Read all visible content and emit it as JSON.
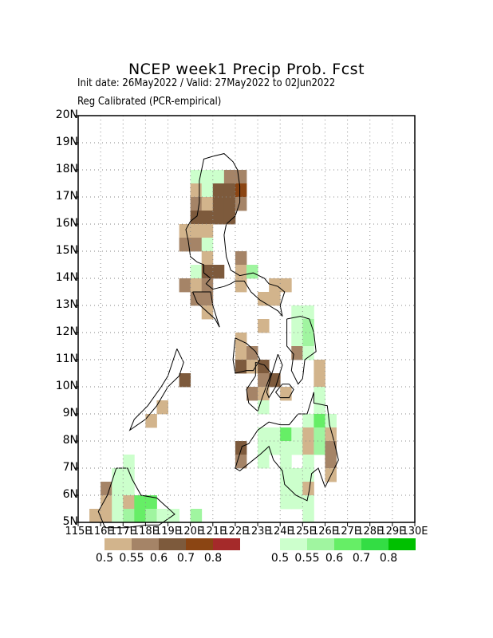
{
  "title": "NCEP week1 Precip Prob. Fcst",
  "subtitle1": "Init date: 26May2022 / Valid: 27May2022 to 02Jun2022",
  "subtitle2": "Reg Calibrated (PCR-empirical)",
  "lat_labels": [
    "5N",
    "6N",
    "7N",
    "8N",
    "9N",
    "10N",
    "11N",
    "12N",
    "13N",
    "14N",
    "15N",
    "16N",
    "17N",
    "18N",
    "19N",
    "20N"
  ],
  "lon_labels": [
    "115E",
    "116E",
    "117E",
    "118E",
    "119E",
    "120E",
    "121E",
    "122E",
    "123E",
    "124E",
    "125E",
    "126E",
    "127E",
    "128E",
    "129E",
    "130E"
  ],
  "dry_colors": [
    "#d2b48c",
    "#a58467",
    "#7d5a3c",
    "#8b4513",
    "#a52a2a"
  ],
  "wet_colors": [
    "#ccffcc",
    "#a0f5a0",
    "#66ee66",
    "#33dd44",
    "#00c000"
  ],
  "dry_labels": [
    "0.5",
    "0.55",
    "0.6",
    "0.7",
    "0.8"
  ],
  "wet_labels": [
    "0.5",
    "0.55",
    "0.6",
    "0.7",
    "0.8"
  ],
  "cells": [
    {
      "lon": 120.25,
      "lat": 17.75,
      "c": "w1"
    },
    {
      "lon": 120.75,
      "lat": 17.75,
      "c": "w1"
    },
    {
      "lon": 121.25,
      "lat": 17.75,
      "c": "w1"
    },
    {
      "lon": 121.75,
      "lat": 17.75,
      "c": "d2"
    },
    {
      "lon": 122.25,
      "lat": 17.75,
      "c": "d2"
    },
    {
      "lon": 120.25,
      "lat": 17.25,
      "c": "d1"
    },
    {
      "lon": 120.75,
      "lat": 17.25,
      "c": "w1"
    },
    {
      "lon": 121.25,
      "lat": 17.25,
      "c": "d3"
    },
    {
      "lon": 121.75,
      "lat": 17.25,
      "c": "d3"
    },
    {
      "lon": 122.25,
      "lat": 17.25,
      "c": "d4"
    },
    {
      "lon": 120.25,
      "lat": 16.75,
      "c": "d2"
    },
    {
      "lon": 120.75,
      "lat": 16.75,
      "c": "d1"
    },
    {
      "lon": 121.25,
      "lat": 16.75,
      "c": "d3"
    },
    {
      "lon": 121.75,
      "lat": 16.75,
      "c": "d3"
    },
    {
      "lon": 122.25,
      "lat": 16.75,
      "c": "d2"
    },
    {
      "lon": 120.25,
      "lat": 16.25,
      "c": "d3"
    },
    {
      "lon": 120.75,
      "lat": 16.25,
      "c": "d3"
    },
    {
      "lon": 121.25,
      "lat": 16.25,
      "c": "d3"
    },
    {
      "lon": 121.75,
      "lat": 16.25,
      "c": "d3"
    },
    {
      "lon": 119.75,
      "lat": 15.75,
      "c": "d1"
    },
    {
      "lon": 120.25,
      "lat": 15.75,
      "c": "d1"
    },
    {
      "lon": 120.75,
      "lat": 15.75,
      "c": "d1"
    },
    {
      "lon": 119.75,
      "lat": 15.25,
      "c": "d2"
    },
    {
      "lon": 120.25,
      "lat": 15.25,
      "c": "d2"
    },
    {
      "lon": 120.75,
      "lat": 15.25,
      "c": "w1"
    },
    {
      "lon": 120.75,
      "lat": 14.75,
      "c": "d1"
    },
    {
      "lon": 122.25,
      "lat": 14.75,
      "c": "d2"
    },
    {
      "lon": 120.25,
      "lat": 14.25,
      "c": "w1"
    },
    {
      "lon": 120.75,
      "lat": 14.25,
      "c": "d3"
    },
    {
      "lon": 121.25,
      "lat": 14.25,
      "c": "d3"
    },
    {
      "lon": 122.25,
      "lat": 14.25,
      "c": "d1"
    },
    {
      "lon": 122.75,
      "lat": 14.25,
      "c": "w2"
    },
    {
      "lon": 119.75,
      "lat": 13.75,
      "c": "d2"
    },
    {
      "lon": 120.25,
      "lat": 13.75,
      "c": "d1"
    },
    {
      "lon": 120.75,
      "lat": 13.75,
      "c": "d2"
    },
    {
      "lon": 122.25,
      "lat": 13.75,
      "c": "d1"
    },
    {
      "lon": 123.75,
      "lat": 13.75,
      "c": "d1"
    },
    {
      "lon": 124.25,
      "lat": 13.75,
      "c": "d1"
    },
    {
      "lon": 120.25,
      "lat": 13.25,
      "c": "d2"
    },
    {
      "lon": 120.75,
      "lat": 13.25,
      "c": "d2"
    },
    {
      "lon": 123.25,
      "lat": 13.25,
      "c": "d1"
    },
    {
      "lon": 123.75,
      "lat": 13.25,
      "c": "d1"
    },
    {
      "lon": 120.75,
      "lat": 12.75,
      "c": "d1"
    },
    {
      "lon": 124.75,
      "lat": 12.75,
      "c": "w1"
    },
    {
      "lon": 125.25,
      "lat": 12.75,
      "c": "w1"
    },
    {
      "lon": 123.25,
      "lat": 12.25,
      "c": "d1"
    },
    {
      "lon": 124.75,
      "lat": 12.25,
      "c": "w1"
    },
    {
      "lon": 125.25,
      "lat": 12.25,
      "c": "w2"
    },
    {
      "lon": 122.25,
      "lat": 11.75,
      "c": "d1"
    },
    {
      "lon": 124.75,
      "lat": 11.75,
      "c": "w1"
    },
    {
      "lon": 125.25,
      "lat": 11.75,
      "c": "w2"
    },
    {
      "lon": 122.25,
      "lat": 11.25,
      "c": "d1"
    },
    {
      "lon": 122.75,
      "lat": 11.25,
      "c": "d2"
    },
    {
      "lon": 124.75,
      "lat": 11.25,
      "c": "d2"
    },
    {
      "lon": 125.25,
      "lat": 11.25,
      "c": "w1"
    },
    {
      "lon": 122.25,
      "lat": 10.75,
      "c": "d3"
    },
    {
      "lon": 122.75,
      "lat": 10.75,
      "c": "d1"
    },
    {
      "lon": 123.25,
      "lat": 10.75,
      "c": "d3"
    },
    {
      "lon": 125.75,
      "lat": 10.75,
      "c": "d1"
    },
    {
      "lon": 119.75,
      "lat": 10.25,
      "c": "d3"
    },
    {
      "lon": 123.25,
      "lat": 10.25,
      "c": "d2"
    },
    {
      "lon": 123.75,
      "lat": 10.25,
      "c": "d3"
    },
    {
      "lon": 125.75,
      "lat": 10.25,
      "c": "d1"
    },
    {
      "lon": 122.75,
      "lat": 9.75,
      "c": "d2"
    },
    {
      "lon": 123.25,
      "lat": 9.75,
      "c": "d1"
    },
    {
      "lon": 124.25,
      "lat": 9.75,
      "c": "d1"
    },
    {
      "lon": 125.75,
      "lat": 9.75,
      "c": "w1"
    },
    {
      "lon": 118.75,
      "lat": 9.25,
      "c": "d1"
    },
    {
      "lon": 123.25,
      "lat": 9.25,
      "c": "w1"
    },
    {
      "lon": 125.75,
      "lat": 9.25,
      "c": "w1"
    },
    {
      "lon": 118.25,
      "lat": 8.75,
      "c": "d1"
    },
    {
      "lon": 125.25,
      "lat": 8.75,
      "c": "w1"
    },
    {
      "lon": 125.75,
      "lat": 8.75,
      "c": "w3"
    },
    {
      "lon": 126.25,
      "lat": 8.75,
      "c": "w1"
    },
    {
      "lon": 123.25,
      "lat": 8.25,
      "c": "w1"
    },
    {
      "lon": 123.75,
      "lat": 8.25,
      "c": "w1"
    },
    {
      "lon": 124.25,
      "lat": 8.25,
      "c": "w3"
    },
    {
      "lon": 124.75,
      "lat": 8.25,
      "c": "w1"
    },
    {
      "lon": 125.25,
      "lat": 8.25,
      "c": "d1"
    },
    {
      "lon": 125.75,
      "lat": 8.25,
      "c": "w2"
    },
    {
      "lon": 126.25,
      "lat": 8.25,
      "c": "d1"
    },
    {
      "lon": 122.25,
      "lat": 7.75,
      "c": "d3"
    },
    {
      "lon": 123.25,
      "lat": 7.75,
      "c": "w1"
    },
    {
      "lon": 123.75,
      "lat": 7.75,
      "c": "w1"
    },
    {
      "lon": 124.25,
      "lat": 7.75,
      "c": "w1"
    },
    {
      "lon": 124.75,
      "lat": 7.75,
      "c": "w1"
    },
    {
      "lon": 125.25,
      "lat": 7.75,
      "c": "d1"
    },
    {
      "lon": 125.75,
      "lat": 7.75,
      "c": "w2"
    },
    {
      "lon": 126.25,
      "lat": 7.75,
      "c": "d2"
    },
    {
      "lon": 117.25,
      "lat": 7.25,
      "c": "w1"
    },
    {
      "lon": 122.25,
      "lat": 7.25,
      "c": "d2"
    },
    {
      "lon": 123.25,
      "lat": 7.25,
      "c": "w1"
    },
    {
      "lon": 124.25,
      "lat": 7.25,
      "c": "w1"
    },
    {
      "lon": 125.25,
      "lat": 7.25,
      "c": "w1"
    },
    {
      "lon": 126.25,
      "lat": 7.25,
      "c": "d2"
    },
    {
      "lon": 116.75,
      "lat": 6.75,
      "c": "w1"
    },
    {
      "lon": 117.25,
      "lat": 6.75,
      "c": "w1"
    },
    {
      "lon": 124.25,
      "lat": 6.75,
      "c": "w1"
    },
    {
      "lon": 124.75,
      "lat": 6.75,
      "c": "w1"
    },
    {
      "lon": 125.25,
      "lat": 6.75,
      "c": "w1"
    },
    {
      "lon": 126.25,
      "lat": 6.75,
      "c": "d1"
    },
    {
      "lon": 116.25,
      "lat": 6.25,
      "c": "d2"
    },
    {
      "lon": 116.75,
      "lat": 6.25,
      "c": "w1"
    },
    {
      "lon": 117.25,
      "lat": 6.25,
      "c": "w1"
    },
    {
      "lon": 124.25,
      "lat": 6.25,
      "c": "w1"
    },
    {
      "lon": 124.75,
      "lat": 6.25,
      "c": "w1"
    },
    {
      "lon": 125.25,
      "lat": 6.25,
      "c": "d1"
    },
    {
      "lon": 116.25,
      "lat": 5.75,
      "c": "d1"
    },
    {
      "lon": 116.75,
      "lat": 5.75,
      "c": "w1"
    },
    {
      "lon": 117.25,
      "lat": 5.75,
      "c": "d1"
    },
    {
      "lon": 117.75,
      "lat": 5.75,
      "c": "w3"
    },
    {
      "lon": 118.25,
      "lat": 5.75,
      "c": "w3"
    },
    {
      "lon": 124.25,
      "lat": 5.75,
      "c": "w1"
    },
    {
      "lon": 124.75,
      "lat": 5.75,
      "c": "w1"
    },
    {
      "lon": 125.25,
      "lat": 5.75,
      "c": "w1"
    },
    {
      "lon": 115.75,
      "lat": 5.25,
      "c": "d1"
    },
    {
      "lon": 116.25,
      "lat": 5.25,
      "c": "d1"
    },
    {
      "lon": 116.75,
      "lat": 5.25,
      "c": "w1"
    },
    {
      "lon": 117.25,
      "lat": 5.25,
      "c": "w2"
    },
    {
      "lon": 117.75,
      "lat": 5.25,
      "c": "w3"
    },
    {
      "lon": 118.25,
      "lat": 5.25,
      "c": "w2"
    },
    {
      "lon": 118.75,
      "lat": 5.25,
      "c": "w1"
    },
    {
      "lon": 119.25,
      "lat": 5.25,
      "c": "w1"
    },
    {
      "lon": 120.25,
      "lat": 5.25,
      "c": "w2"
    },
    {
      "lon": 125.25,
      "lat": 5.25,
      "c": "w1"
    }
  ],
  "coast": [
    [
      [
        121.0,
        18.5
      ],
      [
        120.6,
        18.4
      ],
      [
        120.4,
        17.6
      ],
      [
        120.4,
        16.8
      ],
      [
        120.3,
        16.3
      ],
      [
        120.0,
        16.1
      ],
      [
        119.8,
        15.8
      ],
      [
        119.9,
        15.4
      ],
      [
        120.0,
        14.8
      ],
      [
        120.3,
        14.6
      ],
      [
        120.6,
        14.5
      ],
      [
        120.6,
        14.2
      ],
      [
        120.9,
        14.0
      ],
      [
        120.7,
        13.8
      ],
      [
        121.0,
        13.6
      ],
      [
        121.5,
        13.7
      ],
      [
        121.8,
        13.8
      ],
      [
        122.0,
        13.9
      ],
      [
        122.4,
        13.9
      ],
      [
        122.7,
        13.5
      ],
      [
        123.1,
        13.2
      ],
      [
        123.5,
        13.0
      ],
      [
        123.9,
        12.8
      ],
      [
        124.1,
        12.6
      ],
      [
        124.0,
        13.0
      ],
      [
        124.2,
        13.5
      ],
      [
        123.9,
        13.7
      ],
      [
        123.5,
        13.8
      ],
      [
        123.3,
        14.0
      ],
      [
        122.8,
        14.2
      ],
      [
        122.2,
        14.1
      ],
      [
        121.8,
        14.3
      ],
      [
        121.6,
        14.8
      ],
      [
        121.5,
        15.6
      ],
      [
        121.6,
        16.0
      ],
      [
        122.0,
        16.3
      ],
      [
        122.2,
        16.8
      ],
      [
        122.2,
        17.4
      ],
      [
        122.1,
        18.0
      ],
      [
        121.9,
        18.3
      ],
      [
        121.5,
        18.6
      ],
      [
        121.0,
        18.5
      ]
    ],
    [
      [
        124.3,
        12.5
      ],
      [
        124.9,
        12.6
      ],
      [
        125.3,
        12.5
      ],
      [
        125.5,
        12.0
      ],
      [
        125.6,
        11.3
      ],
      [
        125.1,
        11.0
      ],
      [
        125.0,
        10.3
      ],
      [
        124.8,
        10.1
      ],
      [
        124.5,
        10.6
      ],
      [
        124.6,
        11.2
      ],
      [
        124.3,
        11.5
      ],
      [
        124.3,
        12.0
      ],
      [
        124.3,
        12.5
      ]
    ],
    [
      [
        122.0,
        11.8
      ],
      [
        122.5,
        11.6
      ],
      [
        122.9,
        11.3
      ],
      [
        123.1,
        11.0
      ],
      [
        122.8,
        10.6
      ],
      [
        122.5,
        10.6
      ],
      [
        122.0,
        10.5
      ],
      [
        121.9,
        11.0
      ],
      [
        122.0,
        11.8
      ]
    ],
    [
      [
        122.9,
        10.9
      ],
      [
        123.3,
        10.8
      ],
      [
        123.6,
        10.5
      ],
      [
        123.2,
        9.6
      ],
      [
        123.0,
        9.1
      ],
      [
        122.6,
        9.4
      ],
      [
        122.5,
        9.9
      ],
      [
        122.9,
        10.4
      ],
      [
        122.9,
        10.9
      ]
    ],
    [
      [
        123.9,
        11.2
      ],
      [
        124.1,
        10.8
      ],
      [
        123.8,
        10.0
      ],
      [
        123.5,
        9.6
      ],
      [
        123.4,
        9.8
      ],
      [
        123.6,
        10.4
      ],
      [
        123.9,
        11.2
      ]
    ],
    [
      [
        124.4,
        10.1
      ],
      [
        124.6,
        9.9
      ],
      [
        124.4,
        9.6
      ],
      [
        124.0,
        9.6
      ],
      [
        123.8,
        9.8
      ],
      [
        124.1,
        10.1
      ],
      [
        124.4,
        10.1
      ]
    ],
    [
      [
        119.4,
        11.4
      ],
      [
        119.7,
        10.9
      ],
      [
        119.5,
        10.4
      ],
      [
        119.0,
        10.0
      ],
      [
        118.5,
        9.3
      ],
      [
        118.0,
        8.8
      ],
      [
        117.3,
        8.4
      ],
      [
        117.5,
        8.8
      ],
      [
        118.1,
        9.3
      ],
      [
        118.7,
        10.0
      ],
      [
        119.0,
        10.4
      ],
      [
        119.4,
        11.4
      ]
    ],
    [
      [
        120.1,
        13.5
      ],
      [
        120.3,
        13.1
      ],
      [
        121.1,
        12.5
      ],
      [
        121.3,
        12.2
      ],
      [
        121.0,
        13.0
      ],
      [
        120.9,
        13.5
      ],
      [
        120.5,
        13.5
      ],
      [
        120.1,
        13.5
      ]
    ],
    [
      [
        125.5,
        9.8
      ],
      [
        125.5,
        9.4
      ],
      [
        126.1,
        9.3
      ],
      [
        126.2,
        8.6
      ],
      [
        126.4,
        8.0
      ],
      [
        126.6,
        7.3
      ],
      [
        126.3,
        6.8
      ],
      [
        126.0,
        6.3
      ],
      [
        125.7,
        7.0
      ],
      [
        125.4,
        6.8
      ],
      [
        125.3,
        6.2
      ],
      [
        125.2,
        5.8
      ],
      [
        124.7,
        6.0
      ],
      [
        124.2,
        6.4
      ],
      [
        124.1,
        6.9
      ],
      [
        123.7,
        7.3
      ],
      [
        123.5,
        7.8
      ],
      [
        123.1,
        7.5
      ],
      [
        122.8,
        7.3
      ],
      [
        122.2,
        6.9
      ],
      [
        122.0,
        7.0
      ],
      [
        122.3,
        7.8
      ],
      [
        122.6,
        7.9
      ],
      [
        123.0,
        8.4
      ],
      [
        123.5,
        8.7
      ],
      [
        124.0,
        8.6
      ],
      [
        124.4,
        8.6
      ],
      [
        124.8,
        9.0
      ],
      [
        125.2,
        9.0
      ],
      [
        125.5,
        9.8
      ]
    ],
    [
      [
        116.7,
        7.0
      ],
      [
        117.2,
        7.0
      ],
      [
        117.4,
        6.6
      ],
      [
        117.8,
        6.0
      ],
      [
        118.5,
        5.9
      ],
      [
        119.3,
        5.3
      ],
      [
        118.6,
        4.9
      ],
      [
        118.0,
        4.9
      ],
      [
        117.1,
        4.8
      ],
      [
        116.2,
        4.8
      ],
      [
        115.9,
        5.4
      ],
      [
        116.3,
        6.0
      ],
      [
        116.7,
        7.0
      ]
    ]
  ]
}
